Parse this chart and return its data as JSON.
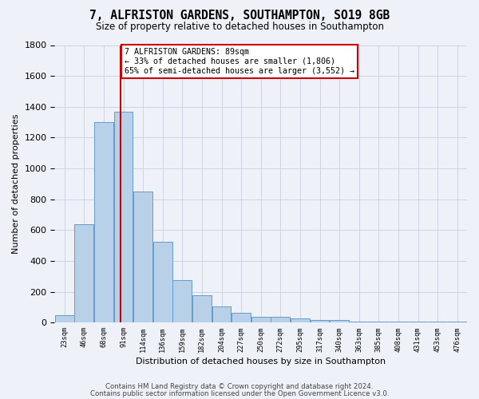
{
  "title": "7, ALFRISTON GARDENS, SOUTHAMPTON, SO19 8GB",
  "subtitle": "Size of property relative to detached houses in Southampton",
  "xlabel": "Distribution of detached houses by size in Southampton",
  "ylabel": "Number of detached properties",
  "bar_color": "#b8d0e8",
  "bar_edge_color": "#6699cc",
  "bar_values": [
    50,
    640,
    1300,
    1370,
    850,
    525,
    275,
    175,
    105,
    65,
    37,
    35,
    27,
    15,
    15,
    5,
    5,
    5,
    5,
    5,
    5
  ],
  "categories": [
    "23sqm",
    "46sqm",
    "68sqm",
    "91sqm",
    "114sqm",
    "136sqm",
    "159sqm",
    "182sqm",
    "204sqm",
    "227sqm",
    "250sqm",
    "272sqm",
    "295sqm",
    "317sqm",
    "340sqm",
    "363sqm",
    "385sqm",
    "408sqm",
    "431sqm",
    "453sqm",
    "476sqm"
  ],
  "bin_edges": [
    11.5,
    34.5,
    57.5,
    80.5,
    103.5,
    126.5,
    149.5,
    172.5,
    195.5,
    218.5,
    241.5,
    264.5,
    287.5,
    310.5,
    333.5,
    356.5,
    379.5,
    402.5,
    425.5,
    448.5,
    471.5,
    494.5
  ],
  "bin_width": 23,
  "ylim": [
    0,
    1800
  ],
  "yticks": [
    0,
    200,
    400,
    600,
    800,
    1000,
    1200,
    1400,
    1600,
    1800
  ],
  "property_line_x": 89,
  "annotation_line1": "7 ALFRISTON GARDENS: 89sqm",
  "annotation_line2": "← 33% of detached houses are smaller (1,806)",
  "annotation_line3": "65% of semi-detached houses are larger (3,552) →",
  "footer_line1": "Contains HM Land Registry data © Crown copyright and database right 2024.",
  "footer_line2": "Contains public sector information licensed under the Open Government Licence v3.0.",
  "background_color": "#eef2f8",
  "grid_color": "#c8d0dc",
  "line_color": "#cc0000",
  "annotation_box_color": "#ffffff",
  "annotation_box_edge": "#cc0000"
}
